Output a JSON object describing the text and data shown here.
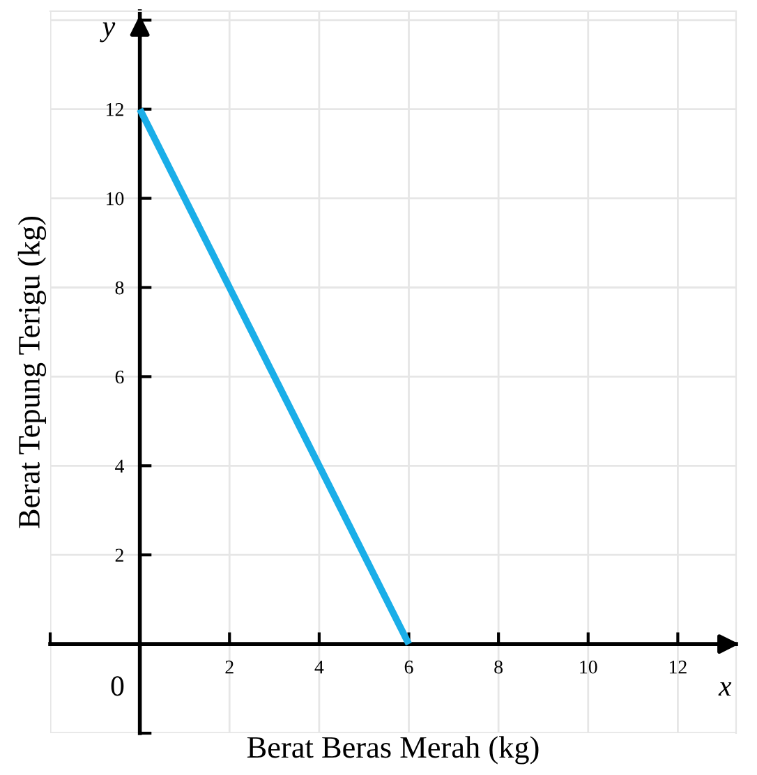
{
  "chart_data": {
    "type": "line",
    "xlabel": "Berat Beras Merah (kg)",
    "ylabel": "Berat Tepung Terigu (kg)",
    "annotations": [
      "0",
      "x",
      "y"
    ],
    "x": [
      0,
      6
    ],
    "series": [
      {
        "color": "#1aaee8",
        "values": [
          12,
          0
        ]
      }
    ],
    "xlim": [
      -2,
      13.3
    ],
    "ylim": [
      -2,
      14.2
    ],
    "xticks": [
      {
        "value": -2,
        "label": null
      },
      2,
      4,
      6,
      8,
      10,
      12
    ],
    "yticks": [
      {
        "value": -2,
        "label": null
      },
      2,
      4,
      6,
      8,
      10,
      12,
      {
        "value": 14,
        "label": null
      }
    ],
    "grid": true,
    "legend": false,
    "marker": "none",
    "line_style": "solid"
  }
}
